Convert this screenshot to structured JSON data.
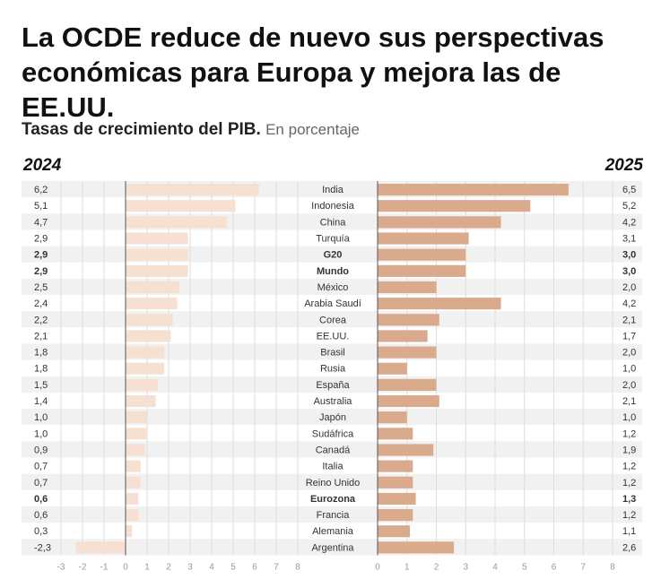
{
  "headline": "La OCDE reduce de nuevo sus perspectivas económicas para Europa y mejora las de EE.UU.",
  "subtitle": {
    "main": "Tasas de crecimiento del PIB.",
    "unit": "En porcentaje"
  },
  "chart_data": {
    "type": "bar",
    "orientation": "horizontal",
    "categories": [
      "India",
      "Indonesia",
      "China",
      "Turquía",
      "G20",
      "Mundo",
      "México",
      "Arabia Saudí",
      "Corea",
      "EE.UU.",
      "Brasil",
      "Rusia",
      "España",
      "Australia",
      "Japón",
      "Sudáfrica",
      "Canadá",
      "Italia",
      "Reino Unido",
      "Eurozona",
      "Francia",
      "Alemania",
      "Argentina"
    ],
    "bold_categories": [
      "G20",
      "Mundo",
      "Eurozona"
    ],
    "series": [
      {
        "name": "2024",
        "values": [
          6.2,
          5.1,
          4.7,
          2.9,
          2.9,
          2.9,
          2.5,
          2.4,
          2.2,
          2.1,
          1.8,
          1.8,
          1.5,
          1.4,
          1.0,
          1.0,
          0.9,
          0.7,
          0.7,
          0.6,
          0.6,
          0.3,
          -2.3
        ],
        "labels": [
          "6,2",
          "5,1",
          "4,7",
          "2,9",
          "2,9",
          "2,9",
          "2,5",
          "2,4",
          "2,2",
          "2,1",
          "1,8",
          "1,8",
          "1,5",
          "1,4",
          "1,0",
          "1,0",
          "0,9",
          "0,7",
          "0,7",
          "0,6",
          "0,6",
          "0,3",
          "-2,3"
        ],
        "color": "#f5e0d2",
        "xlim": [
          -3,
          8
        ],
        "ticks": [
          "-3",
          "-2",
          "-1",
          "0",
          "1",
          "2",
          "3",
          "4",
          "5",
          "6",
          "7",
          "8"
        ]
      },
      {
        "name": "2025",
        "values": [
          6.5,
          5.2,
          4.2,
          3.1,
          3.0,
          3.0,
          2.0,
          4.2,
          2.1,
          1.7,
          2.0,
          1.0,
          2.0,
          2.1,
          1.0,
          1.2,
          1.9,
          1.2,
          1.2,
          1.3,
          1.2,
          1.1,
          2.6
        ],
        "labels": [
          "6,5",
          "5,2",
          "4,2",
          "3,1",
          "3,0",
          "3,0",
          "2,0",
          "4,2",
          "2,1",
          "1,7",
          "2,0",
          "1,0",
          "2,0",
          "2,1",
          "1,0",
          "1,2",
          "1,9",
          "1,2",
          "1,2",
          "1,3",
          "1,2",
          "1,1",
          "2,6"
        ],
        "color": "#d9aa8c",
        "xlim": [
          0,
          8
        ],
        "ticks": [
          "0",
          "1",
          "2",
          "3",
          "4",
          "5",
          "6",
          "7",
          "8"
        ]
      }
    ],
    "grid": true
  }
}
